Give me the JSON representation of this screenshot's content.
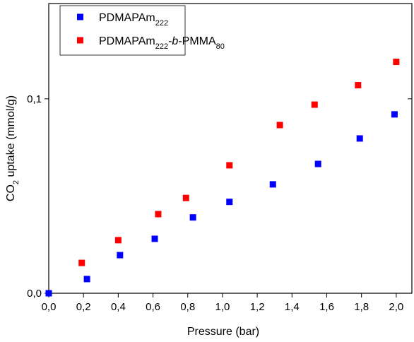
{
  "chart_data": {
    "type": "scatter",
    "x_label": "Pressure (bar)",
    "y_label": "CO2 uptake (mmol/g)",
    "xlim": [
      0,
      2.09
    ],
    "ylim": [
      0,
      0.149
    ],
    "xticks": [
      {
        "value": 0,
        "label": "0,0"
      },
      {
        "value": 0.2,
        "label": "0,2"
      },
      {
        "value": 0.4,
        "label": "0,4"
      },
      {
        "value": 0.6,
        "label": "0,6"
      },
      {
        "value": 0.8,
        "label": "0,8"
      },
      {
        "value": 1.0,
        "label": "1,0"
      },
      {
        "value": 1.2,
        "label": "1,2"
      },
      {
        "value": 1.4,
        "label": "1,4"
      },
      {
        "value": 1.6,
        "label": "1,6"
      },
      {
        "value": 1.8,
        "label": "1,8"
      },
      {
        "value": 2.0,
        "label": "2,0"
      }
    ],
    "yticks": [
      {
        "value": 0,
        "label": "0,0"
      },
      {
        "value": 0.1,
        "label": "0,1"
      }
    ],
    "legend": "top-left",
    "series": [
      {
        "name": "PDMAPAm222",
        "color": "#0000ff",
        "x": [
          0.0,
          0.22,
          0.41,
          0.61,
          0.83,
          1.04,
          1.29,
          1.55,
          1.79,
          1.99
        ],
        "values": [
          0.0,
          0.0073,
          0.0196,
          0.028,
          0.039,
          0.047,
          0.056,
          0.0665,
          0.0796,
          0.092
        ]
      },
      {
        "name": "PDMAPAm222-b-PMMA80",
        "color": "#ff0000",
        "x": [
          0.19,
          0.4,
          0.63,
          0.79,
          1.04,
          1.33,
          1.53,
          1.78,
          2.0
        ],
        "values": [
          0.0156,
          0.0273,
          0.0407,
          0.049,
          0.0658,
          0.0865,
          0.097,
          0.107,
          0.119
        ]
      }
    ]
  }
}
